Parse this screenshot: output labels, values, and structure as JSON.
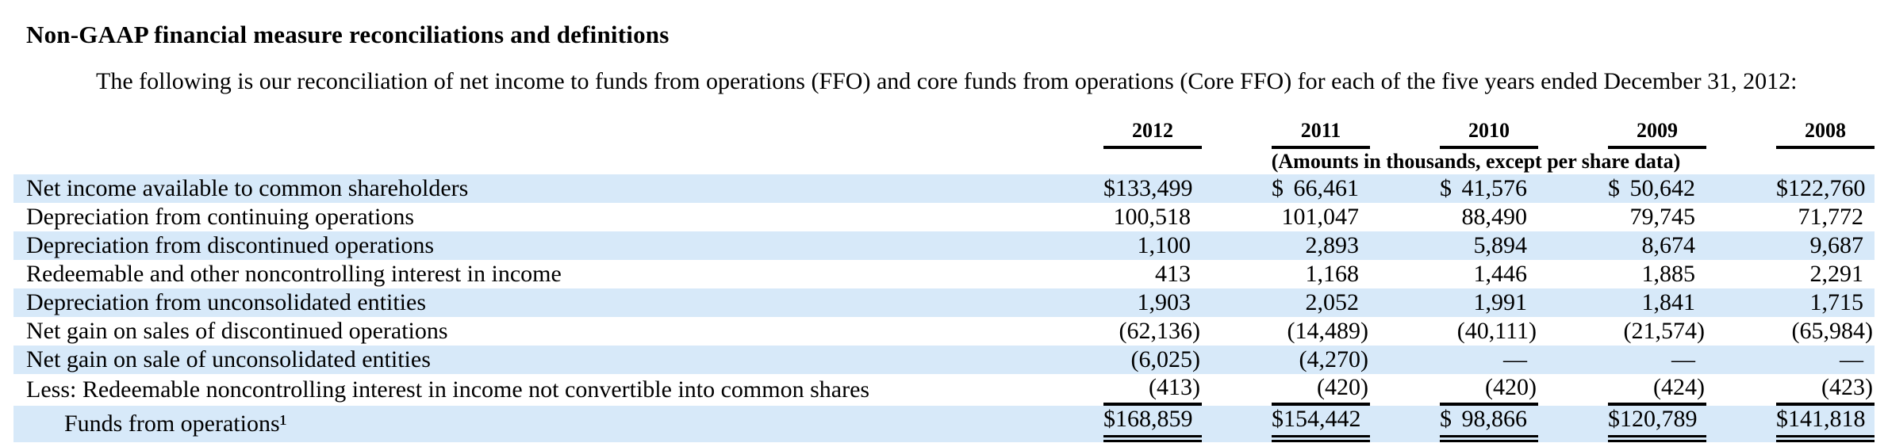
{
  "page": {
    "heading": "Non-GAAP financial measure reconciliations and definitions",
    "intro": "The following is our reconciliation of net income to funds from operations (FFO) and core funds from operations (Core FFO) for each of the five years ended December 31, 2012:"
  },
  "table": {
    "years": [
      "2012",
      "2011",
      "2010",
      "2009",
      "2008"
    ],
    "note": "(Amounts in thousands, except per share data)",
    "rows": [
      {
        "label": "Net income available to common shareholders",
        "dollar": "$",
        "values": [
          "133,499",
          "66,461",
          "41,576",
          "50,642",
          "122,760"
        ]
      },
      {
        "label": "Depreciation from continuing operations",
        "dollar": "",
        "values": [
          "100,518",
          "101,047",
          "88,490",
          "79,745",
          "71,772"
        ]
      },
      {
        "label": "Depreciation from discontinued operations",
        "dollar": "",
        "values": [
          "1,100",
          "2,893",
          "5,894",
          "8,674",
          "9,687"
        ]
      },
      {
        "label": "Redeemable and other noncontrolling interest in income",
        "dollar": "",
        "values": [
          "413",
          "1,168",
          "1,446",
          "1,885",
          "2,291"
        ]
      },
      {
        "label": "Depreciation from unconsolidated entities",
        "dollar": "",
        "values": [
          "1,903",
          "2,052",
          "1,991",
          "1,841",
          "1,715"
        ]
      },
      {
        "label": "Net gain on sales of discontinued operations",
        "dollar": "",
        "values": [
          "(62,136)",
          "(14,489)",
          "(40,111)",
          "(21,574)",
          "(65,984)"
        ]
      },
      {
        "label": "Net gain on sale of unconsolidated entities",
        "dollar": "",
        "values": [
          "(6,025)",
          "(4,270)",
          "—",
          "—",
          "—"
        ]
      },
      {
        "label": "Less: Redeemable noncontrolling interest in income not convertible into common shares",
        "dollar": "",
        "values": [
          "(413)",
          "(420)",
          "(420)",
          "(424)",
          "(423)"
        ]
      },
      {
        "label": "Funds from operations¹",
        "dollar": "$",
        "values": [
          "168,859",
          "154,442",
          "98,866",
          "120,789",
          "141,818"
        ]
      }
    ]
  },
  "colors": {
    "row_highlight": "#D7E9F9",
    "text": "#000000",
    "background": "#FFFFFF"
  }
}
